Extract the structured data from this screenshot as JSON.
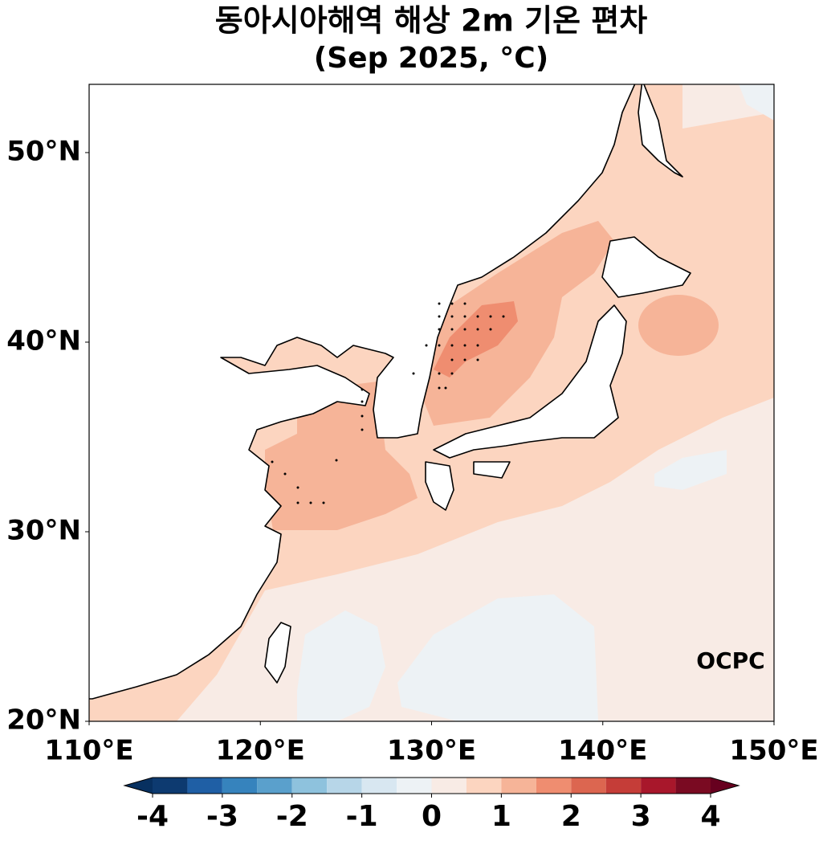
{
  "chart_data": {
    "type": "map",
    "title": "동아시아해역 해상 2m 기온 편차",
    "subtitle": "(Sep 2025, °C)",
    "xlim": [
      110,
      150
    ],
    "ylim": [
      20,
      53.6
    ],
    "xticks": [
      {
        "value": 110,
        "label": "110°E"
      },
      {
        "value": 120,
        "label": "120°E"
      },
      {
        "value": 130,
        "label": "130°E"
      },
      {
        "value": 140,
        "label": "140°E"
      },
      {
        "value": 150,
        "label": "150°E"
      }
    ],
    "yticks": [
      {
        "value": 20,
        "label": "20°N"
      },
      {
        "value": 30,
        "label": "30°N"
      },
      {
        "value": 40,
        "label": "40°N"
      },
      {
        "value": 50,
        "label": "50°N"
      }
    ],
    "colorbar": {
      "levels": [
        -4,
        -3.5,
        -3,
        -2.5,
        -2,
        -1.5,
        -1,
        -0.5,
        0,
        0.5,
        1,
        1.5,
        2,
        2.5,
        3,
        3.5,
        4
      ],
      "colors": [
        "#0d3a70",
        "#1f5fa5",
        "#3683bd",
        "#5aa0cc",
        "#8ec2dd",
        "#b7d6e8",
        "#d8e7f1",
        "#edf2f5",
        "#f8ebe5",
        "#fcd5c0",
        "#f6b498",
        "#ef8d70",
        "#dc6650",
        "#c53d38",
        "#a8172b",
        "#7a0a22"
      ],
      "under_color": "#073060",
      "over_color": "#67001f",
      "ticks": [
        -4,
        -3,
        -2,
        -1,
        0,
        1,
        2,
        3,
        4
      ]
    },
    "logo": "OCPC"
  }
}
